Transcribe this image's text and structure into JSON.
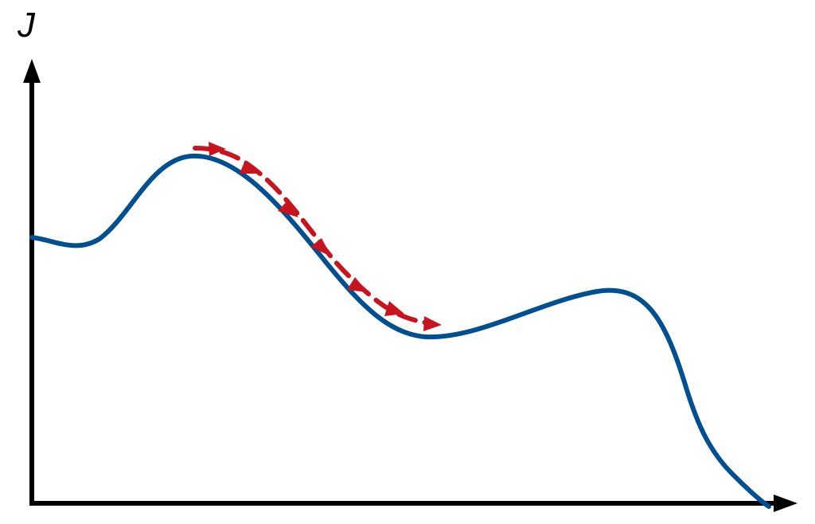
{
  "y_axis_label": "J",
  "colors": {
    "axis": "#000000",
    "curve": "#004F91",
    "descent_path": "#C8141E",
    "background": "#FFFFFF"
  },
  "elements": {
    "curve": "cost-function-curve",
    "path": "gradient-descent-path",
    "arrows": "descent-step-arrows"
  }
}
